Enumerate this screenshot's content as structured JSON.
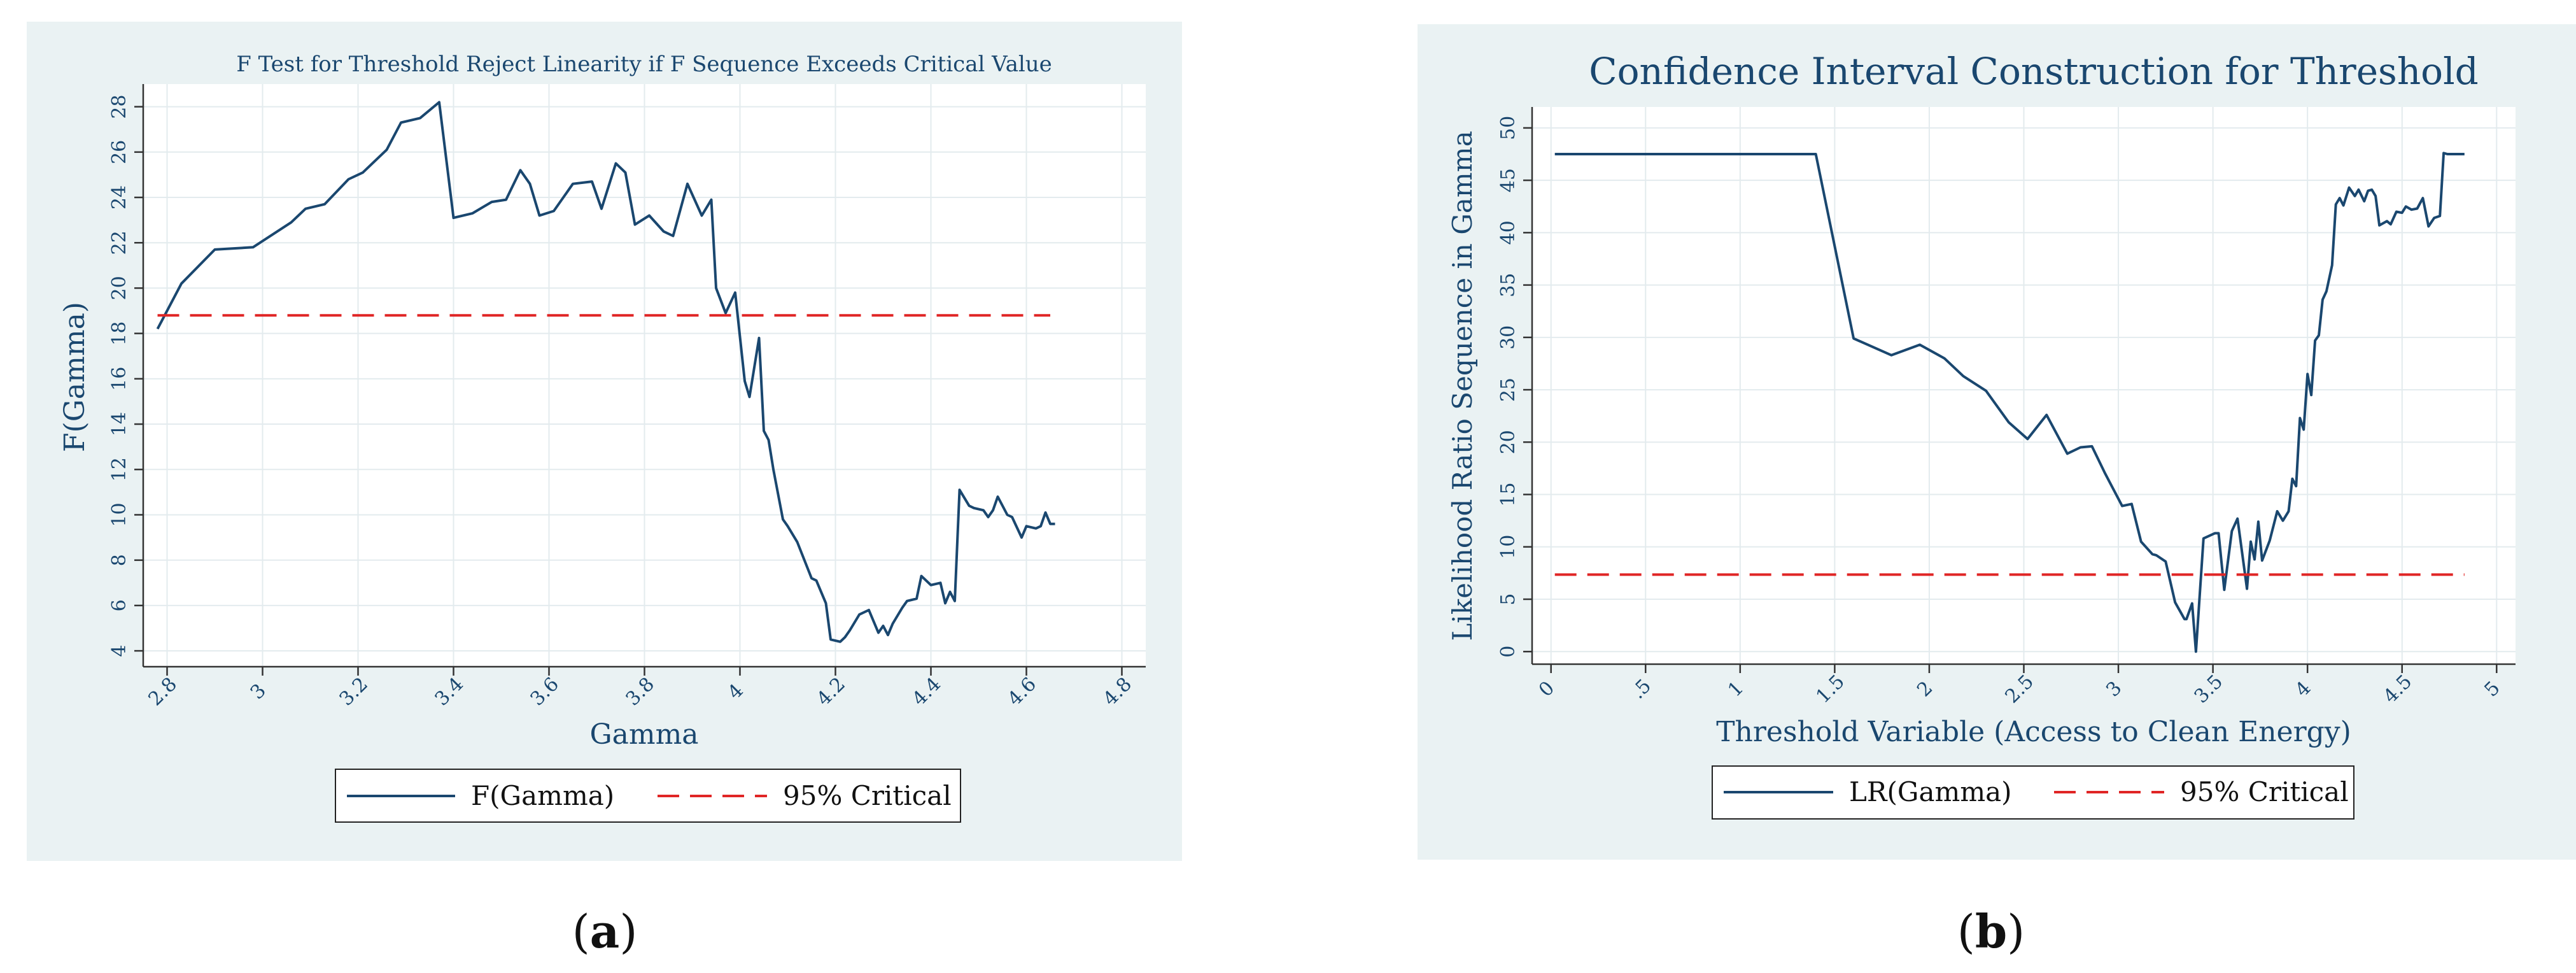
{
  "chart_data": [
    {
      "type": "line",
      "panel_label_prefix": "(",
      "panel_label": "a",
      "panel_label_suffix": ")",
      "title": "F Test for Threshold Reject Linearity if F Sequence Exceeds Critical Value",
      "xlabel": "Gamma",
      "ylabel": "F(Gamma)",
      "xlim": [
        2.75,
        4.85
      ],
      "ylim": [
        3.3,
        29
      ],
      "xticks": [
        2.8,
        3,
        3.2,
        3.4,
        3.6,
        3.8,
        4,
        4.2,
        4.4,
        4.6,
        4.8
      ],
      "xtick_labels": [
        "2.8",
        "3",
        "3.2",
        "3.4",
        "3.6",
        "3.8",
        "4",
        "4.2",
        "4.4",
        "4.6",
        "4.8"
      ],
      "yticks": [
        4,
        6,
        8,
        10,
        12,
        14,
        16,
        18,
        20,
        22,
        24,
        26,
        28
      ],
      "ytick_labels": [
        "4",
        "6",
        "8",
        "10",
        "12",
        "14",
        "16",
        "18",
        "20",
        "22",
        "24",
        "26",
        "28"
      ],
      "grid": true,
      "legend": [
        "F(Gamma)",
        "95% Critical"
      ],
      "legend_position": "bottom",
      "series": [
        {
          "name": "F(Gamma)",
          "style": "solid",
          "color": "#1a476f",
          "x": [
            2.78,
            2.83,
            2.9,
            2.98,
            3.06,
            3.09,
            3.13,
            3.18,
            3.21,
            3.26,
            3.29,
            3.33,
            3.37,
            3.4,
            3.44,
            3.48,
            3.51,
            3.54,
            3.56,
            3.58,
            3.61,
            3.65,
            3.69,
            3.71,
            3.74,
            3.76,
            3.78,
            3.81,
            3.84,
            3.86,
            3.89,
            3.92,
            3.94,
            3.95,
            3.97,
            3.99,
            4.01,
            4.02,
            4.04,
            4.05,
            4.06,
            4.07,
            4.09,
            4.1,
            4.12,
            4.15,
            4.16,
            4.18,
            4.19,
            4.21,
            4.22,
            4.23,
            4.25,
            4.27,
            4.29,
            4.3,
            4.31,
            4.32,
            4.34,
            4.35,
            4.37,
            4.38,
            4.4,
            4.42,
            4.43,
            4.44,
            4.45,
            4.46,
            4.48,
            4.49,
            4.51,
            4.52,
            4.53,
            4.54,
            4.56,
            4.57,
            4.59,
            4.6,
            4.62,
            4.63,
            4.64,
            4.65,
            4.66
          ],
          "values": [
            18.2,
            20.2,
            21.7,
            21.8,
            22.9,
            23.5,
            23.7,
            24.8,
            25.1,
            26.1,
            27.3,
            27.5,
            28.2,
            23.1,
            23.3,
            23.8,
            23.9,
            25.2,
            24.6,
            23.2,
            23.4,
            24.6,
            24.7,
            23.5,
            25.5,
            25.1,
            22.8,
            23.2,
            22.5,
            22.3,
            24.6,
            23.2,
            23.9,
            20.0,
            18.9,
            19.8,
            15.9,
            15.2,
            17.8,
            13.7,
            13.3,
            12.0,
            9.8,
            9.5,
            8.8,
            7.2,
            7.1,
            6.1,
            4.5,
            4.4,
            4.6,
            4.9,
            5.6,
            5.8,
            4.8,
            5.1,
            4.7,
            5.2,
            5.9,
            6.2,
            6.3,
            7.3,
            6.9,
            7.0,
            6.1,
            6.6,
            6.2,
            11.1,
            10.4,
            10.3,
            10.2,
            9.9,
            10.2,
            10.8,
            10.0,
            9.9,
            9.0,
            9.5,
            9.4,
            9.5,
            10.1,
            9.6,
            9.6
          ]
        },
        {
          "name": "95% Critical",
          "style": "dashed",
          "color": "#e02525",
          "x": [
            2.78,
            4.65
          ],
          "values": [
            18.8,
            18.8
          ]
        }
      ]
    },
    {
      "type": "line",
      "panel_label_prefix": "(",
      "panel_label": "b",
      "panel_label_suffix": ")",
      "title": "Confidence Interval Construction for Threshold",
      "xlabel": "Threshold Variable (Access to Clean Energy)",
      "ylabel": "Likelihood Ratio Sequence in Gamma",
      "xlim": [
        -0.1,
        5.1
      ],
      "ylim": [
        -1.2,
        52
      ],
      "xticks": [
        0,
        0.5,
        1,
        1.5,
        2,
        2.5,
        3,
        3.5,
        4,
        4.5,
        5
      ],
      "xtick_labels": [
        "0",
        ".5",
        "1",
        "1.5",
        "2",
        "2.5",
        "3",
        "3.5",
        "4",
        "4.5",
        "5"
      ],
      "yticks": [
        0,
        5,
        10,
        15,
        20,
        25,
        30,
        35,
        40,
        45,
        50
      ],
      "ytick_labels": [
        "0",
        "5",
        "10",
        "15",
        "20",
        "25",
        "30",
        "35",
        "40",
        "45",
        "50"
      ],
      "grid": true,
      "legend": [
        "LR(Gamma)",
        "95% Critical"
      ],
      "legend_position": "bottom",
      "series": [
        {
          "name": "LR(Gamma)",
          "style": "solid",
          "color": "#1a476f",
          "x": [
            0.02,
            1.4,
            1.6,
            1.8,
            1.95,
            2.08,
            2.18,
            2.3,
            2.42,
            2.52,
            2.62,
            2.73,
            2.8,
            2.86,
            2.93,
            3.02,
            3.07,
            3.12,
            3.18,
            3.2,
            3.25,
            3.3,
            3.35,
            3.36,
            3.39,
            3.41,
            3.45,
            3.51,
            3.53,
            3.56,
            3.6,
            3.63,
            3.68,
            3.7,
            3.72,
            3.74,
            3.76,
            3.8,
            3.84,
            3.87,
            3.9,
            3.92,
            3.94,
            3.96,
            3.98,
            4.0,
            4.02,
            4.04,
            4.06,
            4.08,
            4.1,
            4.13,
            4.15,
            4.17,
            4.19,
            4.22,
            4.25,
            4.27,
            4.3,
            4.32,
            4.34,
            4.36,
            4.38,
            4.42,
            4.44,
            4.47,
            4.5,
            4.52,
            4.55,
            4.58,
            4.61,
            4.64,
            4.67,
            4.7,
            4.72,
            4.74,
            4.76,
            4.78,
            4.8,
            4.83
          ],
          "values": [
            47.5,
            47.5,
            29.9,
            28.3,
            29.3,
            28.0,
            26.3,
            24.9,
            21.9,
            20.3,
            22.6,
            18.9,
            19.5,
            19.6,
            17.0,
            13.9,
            14.1,
            10.5,
            9.3,
            9.2,
            8.6,
            4.7,
            3.1,
            3.1,
            4.6,
            0.0,
            10.8,
            11.3,
            11.3,
            5.9,
            11.5,
            12.7,
            6.0,
            10.5,
            8.8,
            12.4,
            8.7,
            10.6,
            13.4,
            12.5,
            13.4,
            16.5,
            15.8,
            22.3,
            21.2,
            26.5,
            24.5,
            29.7,
            30.2,
            33.6,
            34.4,
            36.9,
            42.7,
            43.3,
            42.6,
            44.3,
            43.5,
            44.1,
            43.0,
            44.0,
            44.1,
            43.5,
            40.7,
            41.1,
            40.8,
            42.0,
            41.9,
            42.5,
            42.2,
            42.3,
            43.3,
            40.6,
            41.4,
            41.6,
            47.6,
            47.5,
            47.5,
            47.5,
            47.5,
            47.5
          ]
        },
        {
          "name": "95% Critical",
          "style": "dashed",
          "color": "#e02525",
          "x": [
            0.02,
            4.83
          ],
          "values": [
            7.35,
            7.35
          ]
        }
      ]
    }
  ]
}
